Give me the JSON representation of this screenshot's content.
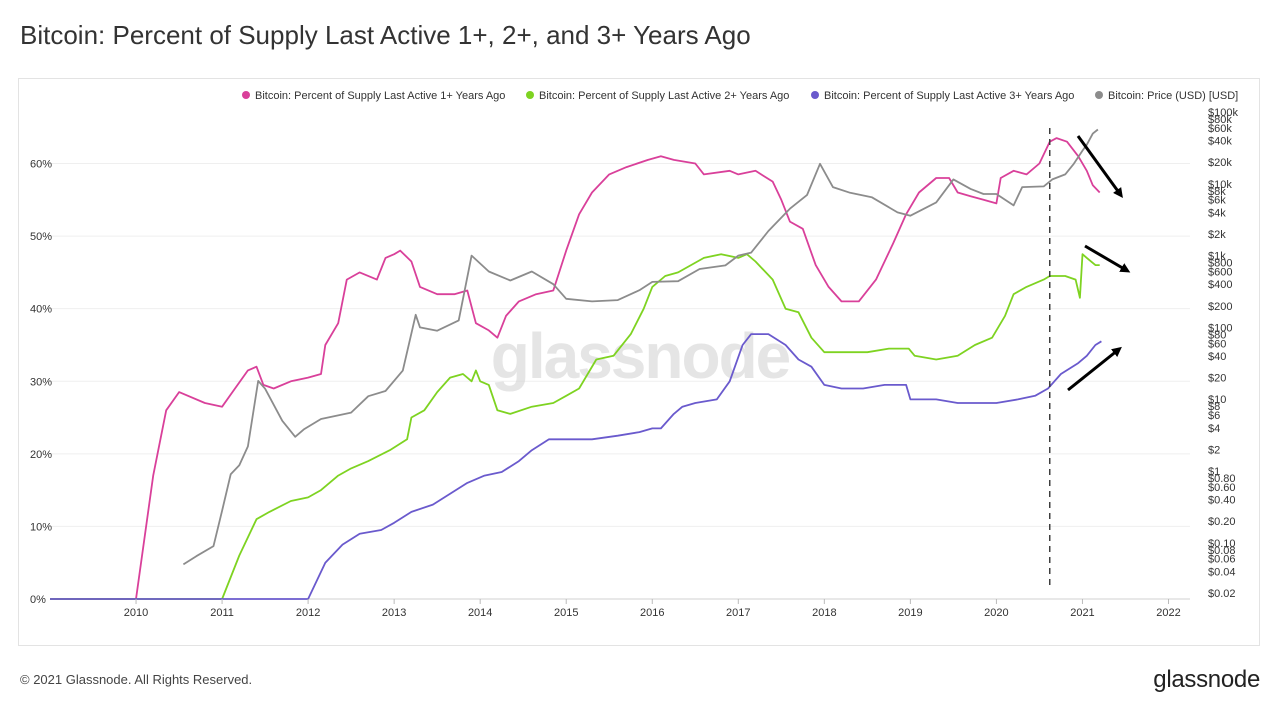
{
  "page": {
    "title": "Bitcoin: Percent of Supply Last Active 1+, 2+, and 3+ Years Ago",
    "footer": "© 2021 Glassnode. All Rights Reserved.",
    "brand": "glassnode",
    "watermark": "glassnode"
  },
  "colors": {
    "pink": "#d9409a",
    "green": "#7ed321",
    "purple": "#6a5acd",
    "gray": "#8c8c8c",
    "grid": "#efefef",
    "arrow": "#000000"
  },
  "chart_data": {
    "type": "line",
    "title": "Bitcoin: Percent of Supply Last Active 1+, 2+, and 3+ Years Ago",
    "legend_position": "top-right",
    "grid": true,
    "x_range": [
      2009.0,
      2022.25
    ],
    "y_left_range": [
      0,
      70
    ],
    "y_right_scale": "log",
    "y_right_range": [
      0.02,
      100000
    ],
    "x_ticks": [
      "2010",
      "2011",
      "2012",
      "2013",
      "2014",
      "2015",
      "2016",
      "2017",
      "2018",
      "2019",
      "2020",
      "2021",
      "2022"
    ],
    "y_left_ticks": [
      "0%",
      "10%",
      "20%",
      "30%",
      "40%",
      "50%",
      "60%"
    ],
    "y_right_ticks": [
      "$100k",
      "$80k",
      "$60k",
      "$40k",
      "$20k",
      "$10k",
      "$8k",
      "$6k",
      "$4k",
      "$2k",
      "$1k",
      "$800",
      "$600",
      "$400",
      "$200",
      "$100",
      "$80",
      "$60",
      "$40",
      "$20",
      "$10",
      "$8",
      "$6",
      "$4",
      "$2",
      "$1",
      "$0.80",
      "$0.60",
      "$0.40",
      "$0.20",
      "$0.10",
      "$0.08",
      "$0.06",
      "$0.04",
      "$0.02"
    ],
    "vertical_marker_x": 2020.62,
    "series": [
      {
        "name": "Bitcoin: Percent of Supply Last Active 1+ Years Ago",
        "color_key": "pink",
        "axis": "left",
        "points": [
          [
            2009.0,
            0
          ],
          [
            2010.0,
            0
          ],
          [
            2010.2,
            17
          ],
          [
            2010.35,
            26
          ],
          [
            2010.5,
            28.5
          ],
          [
            2010.8,
            27
          ],
          [
            2011.0,
            26.5
          ],
          [
            2011.15,
            29
          ],
          [
            2011.3,
            31.5
          ],
          [
            2011.4,
            32
          ],
          [
            2011.48,
            29.5
          ],
          [
            2011.6,
            29
          ],
          [
            2011.8,
            30
          ],
          [
            2012.0,
            30.5
          ],
          [
            2012.15,
            31
          ],
          [
            2012.2,
            35
          ],
          [
            2012.35,
            38
          ],
          [
            2012.45,
            44
          ],
          [
            2012.6,
            45
          ],
          [
            2012.8,
            44
          ],
          [
            2012.9,
            47
          ],
          [
            2013.0,
            47.5
          ],
          [
            2013.07,
            48
          ],
          [
            2013.2,
            46.5
          ],
          [
            2013.3,
            43
          ],
          [
            2013.5,
            42
          ],
          [
            2013.7,
            42
          ],
          [
            2013.85,
            42.5
          ],
          [
            2013.95,
            38
          ],
          [
            2014.1,
            37
          ],
          [
            2014.2,
            36
          ],
          [
            2014.3,
            39
          ],
          [
            2014.45,
            41
          ],
          [
            2014.65,
            42
          ],
          [
            2014.85,
            42.5
          ],
          [
            2015.0,
            48
          ],
          [
            2015.15,
            53
          ],
          [
            2015.3,
            56
          ],
          [
            2015.5,
            58.5
          ],
          [
            2015.7,
            59.5
          ],
          [
            2015.95,
            60.5
          ],
          [
            2016.1,
            61
          ],
          [
            2016.25,
            60.5
          ],
          [
            2016.5,
            60
          ],
          [
            2016.6,
            58.5
          ],
          [
            2016.9,
            59
          ],
          [
            2017.0,
            58.5
          ],
          [
            2017.2,
            59
          ],
          [
            2017.4,
            57.5
          ],
          [
            2017.5,
            55
          ],
          [
            2017.6,
            52
          ],
          [
            2017.75,
            51
          ],
          [
            2017.9,
            46
          ],
          [
            2018.05,
            43
          ],
          [
            2018.2,
            41
          ],
          [
            2018.4,
            41
          ],
          [
            2018.6,
            44
          ],
          [
            2018.8,
            49
          ],
          [
            2018.95,
            53
          ],
          [
            2019.1,
            56
          ],
          [
            2019.3,
            58
          ],
          [
            2019.45,
            58
          ],
          [
            2019.55,
            56
          ],
          [
            2019.7,
            55.5
          ],
          [
            2019.85,
            55
          ],
          [
            2020.0,
            54.5
          ],
          [
            2020.05,
            58
          ],
          [
            2020.2,
            59
          ],
          [
            2020.35,
            58.5
          ],
          [
            2020.5,
            60
          ],
          [
            2020.58,
            62
          ],
          [
            2020.62,
            63
          ],
          [
            2020.7,
            63.5
          ],
          [
            2020.82,
            63
          ],
          [
            2020.95,
            61
          ],
          [
            2021.05,
            59
          ],
          [
            2021.12,
            57
          ],
          [
            2021.2,
            56
          ]
        ]
      },
      {
        "name": "Bitcoin: Percent of Supply Last Active 2+ Years Ago",
        "color_key": "green",
        "axis": "left",
        "points": [
          [
            2009.0,
            0
          ],
          [
            2011.0,
            0
          ],
          [
            2011.2,
            6
          ],
          [
            2011.4,
            11
          ],
          [
            2011.55,
            12
          ],
          [
            2011.8,
            13.5
          ],
          [
            2012.0,
            14
          ],
          [
            2012.15,
            15
          ],
          [
            2012.35,
            17
          ],
          [
            2012.5,
            18
          ],
          [
            2012.7,
            19
          ],
          [
            2012.95,
            20.5
          ],
          [
            2013.15,
            22
          ],
          [
            2013.2,
            25
          ],
          [
            2013.35,
            26
          ],
          [
            2013.5,
            28.5
          ],
          [
            2013.65,
            30.5
          ],
          [
            2013.8,
            31
          ],
          [
            2013.9,
            30
          ],
          [
            2013.95,
            31.5
          ],
          [
            2014.0,
            30
          ],
          [
            2014.1,
            29.5
          ],
          [
            2014.2,
            26
          ],
          [
            2014.35,
            25.5
          ],
          [
            2014.6,
            26.5
          ],
          [
            2014.85,
            27
          ],
          [
            2015.0,
            28
          ],
          [
            2015.15,
            29
          ],
          [
            2015.35,
            33
          ],
          [
            2015.55,
            33.5
          ],
          [
            2015.75,
            36.5
          ],
          [
            2015.9,
            40
          ],
          [
            2016.0,
            43
          ],
          [
            2016.15,
            44.5
          ],
          [
            2016.3,
            45
          ],
          [
            2016.45,
            46
          ],
          [
            2016.6,
            47
          ],
          [
            2016.8,
            47.5
          ],
          [
            2017.0,
            47
          ],
          [
            2017.1,
            47.5
          ],
          [
            2017.2,
            46.5
          ],
          [
            2017.4,
            44
          ],
          [
            2017.55,
            40
          ],
          [
            2017.7,
            39.5
          ],
          [
            2017.85,
            36
          ],
          [
            2018.0,
            34
          ],
          [
            2018.25,
            34
          ],
          [
            2018.5,
            34
          ],
          [
            2018.75,
            34.5
          ],
          [
            2018.98,
            34.5
          ],
          [
            2019.05,
            33.5
          ],
          [
            2019.3,
            33
          ],
          [
            2019.55,
            33.5
          ],
          [
            2019.75,
            35
          ],
          [
            2019.95,
            36
          ],
          [
            2020.1,
            39
          ],
          [
            2020.2,
            42
          ],
          [
            2020.35,
            43
          ],
          [
            2020.55,
            44
          ],
          [
            2020.62,
            44.5
          ],
          [
            2020.8,
            44.5
          ],
          [
            2020.92,
            44
          ],
          [
            2020.97,
            41.5
          ],
          [
            2021.0,
            47.5
          ],
          [
            2021.05,
            47
          ],
          [
            2021.15,
            46
          ],
          [
            2021.2,
            46
          ]
        ]
      },
      {
        "name": "Bitcoin: Percent of Supply Last Active 3+ Years Ago",
        "color_key": "purple",
        "axis": "left",
        "points": [
          [
            2009.0,
            0
          ],
          [
            2012.0,
            0
          ],
          [
            2012.2,
            5
          ],
          [
            2012.4,
            7.5
          ],
          [
            2012.6,
            9
          ],
          [
            2012.85,
            9.5
          ],
          [
            2013.0,
            10.5
          ],
          [
            2013.2,
            12
          ],
          [
            2013.45,
            13
          ],
          [
            2013.65,
            14.5
          ],
          [
            2013.85,
            16
          ],
          [
            2014.05,
            17
          ],
          [
            2014.25,
            17.5
          ],
          [
            2014.45,
            19
          ],
          [
            2014.6,
            20.5
          ],
          [
            2014.8,
            22
          ],
          [
            2015.0,
            22
          ],
          [
            2015.3,
            22
          ],
          [
            2015.6,
            22.5
          ],
          [
            2015.85,
            23
          ],
          [
            2016.0,
            23.5
          ],
          [
            2016.1,
            23.5
          ],
          [
            2016.25,
            25.5
          ],
          [
            2016.35,
            26.5
          ],
          [
            2016.5,
            27
          ],
          [
            2016.75,
            27.5
          ],
          [
            2016.9,
            30
          ],
          [
            2017.05,
            35
          ],
          [
            2017.15,
            36.5
          ],
          [
            2017.35,
            36.5
          ],
          [
            2017.55,
            35
          ],
          [
            2017.7,
            33
          ],
          [
            2017.85,
            32
          ],
          [
            2018.0,
            29.5
          ],
          [
            2018.2,
            29
          ],
          [
            2018.45,
            29
          ],
          [
            2018.7,
            29.5
          ],
          [
            2018.95,
            29.5
          ],
          [
            2019.0,
            27.5
          ],
          [
            2019.3,
            27.5
          ],
          [
            2019.55,
            27
          ],
          [
            2019.75,
            27
          ],
          [
            2020.0,
            27
          ],
          [
            2020.25,
            27.5
          ],
          [
            2020.45,
            28
          ],
          [
            2020.6,
            29
          ],
          [
            2020.75,
            31
          ],
          [
            2020.95,
            32.5
          ],
          [
            2021.05,
            33.5
          ],
          [
            2021.15,
            35
          ],
          [
            2021.22,
            35.5
          ]
        ]
      },
      {
        "name": "Bitcoin: Price (USD) [USD]",
        "color_key": "gray",
        "axis": "right",
        "points": [
          [
            2010.55,
            0.05
          ],
          [
            2010.7,
            0.065
          ],
          [
            2010.9,
            0.09
          ],
          [
            2011.0,
            0.28
          ],
          [
            2011.1,
            0.9
          ],
          [
            2011.2,
            1.2
          ],
          [
            2011.3,
            2.2
          ],
          [
            2011.42,
            18
          ],
          [
            2011.5,
            14
          ],
          [
            2011.7,
            5
          ],
          [
            2011.85,
            3
          ],
          [
            2011.95,
            3.8
          ],
          [
            2012.15,
            5.3
          ],
          [
            2012.5,
            6.5
          ],
          [
            2012.7,
            11
          ],
          [
            2012.9,
            13
          ],
          [
            2013.1,
            25
          ],
          [
            2013.25,
            150
          ],
          [
            2013.3,
            100
          ],
          [
            2013.5,
            90
          ],
          [
            2013.75,
            125
          ],
          [
            2013.9,
            1000
          ],
          [
            2014.1,
            600
          ],
          [
            2014.35,
            450
          ],
          [
            2014.6,
            600
          ],
          [
            2014.85,
            400
          ],
          [
            2015.0,
            250
          ],
          [
            2015.3,
            230
          ],
          [
            2015.6,
            240
          ],
          [
            2015.85,
            330
          ],
          [
            2016.0,
            430
          ],
          [
            2016.3,
            440
          ],
          [
            2016.55,
            650
          ],
          [
            2016.85,
            730
          ],
          [
            2017.0,
            1000
          ],
          [
            2017.15,
            1100
          ],
          [
            2017.35,
            2200
          ],
          [
            2017.6,
            4500
          ],
          [
            2017.8,
            7000
          ],
          [
            2017.95,
            19000
          ],
          [
            2018.1,
            9000
          ],
          [
            2018.3,
            7500
          ],
          [
            2018.55,
            6500
          ],
          [
            2018.85,
            4000
          ],
          [
            2019.0,
            3600
          ],
          [
            2019.3,
            5500
          ],
          [
            2019.5,
            11500
          ],
          [
            2019.7,
            8500
          ],
          [
            2019.85,
            7200
          ],
          [
            2020.0,
            7200
          ],
          [
            2020.2,
            5000
          ],
          [
            2020.3,
            9000
          ],
          [
            2020.55,
            9200
          ],
          [
            2020.65,
            11500
          ],
          [
            2020.8,
            13500
          ],
          [
            2020.9,
            19000
          ],
          [
            2021.0,
            29000
          ],
          [
            2021.05,
            35000
          ],
          [
            2021.12,
            50000
          ],
          [
            2021.18,
            57000
          ]
        ]
      }
    ]
  }
}
